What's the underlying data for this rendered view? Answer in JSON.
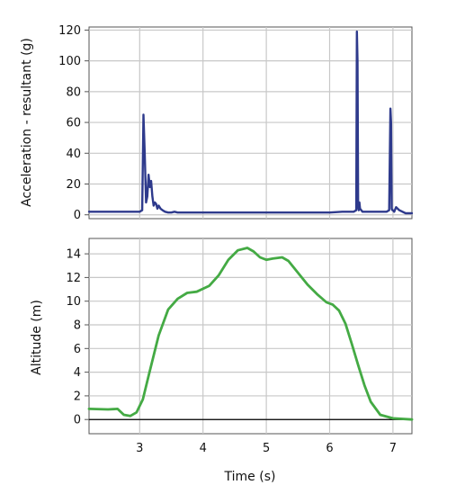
{
  "chart_data": [
    {
      "type": "line",
      "ylabel": "Acceleration - resultant (g)",
      "xlim": [
        2.2,
        7.3
      ],
      "ylim": [
        -2.5,
        122
      ],
      "x_ticks": [
        3,
        4,
        5,
        6,
        7
      ],
      "y_ticks": [
        0,
        20,
        40,
        60,
        80,
        100,
        120
      ],
      "grid": true,
      "series": [
        {
          "color": "#2e3a8c",
          "x": [
            2.2,
            2.4,
            2.6,
            2.8,
            3.0,
            3.04,
            3.06,
            3.08,
            3.1,
            3.12,
            3.14,
            3.16,
            3.18,
            3.2,
            3.22,
            3.24,
            3.26,
            3.28,
            3.3,
            3.33,
            3.36,
            3.4,
            3.45,
            3.5,
            3.55,
            3.6,
            3.7,
            3.8,
            4.0,
            4.5,
            5.0,
            5.5,
            6.0,
            6.2,
            6.38,
            6.42,
            6.43,
            6.44,
            6.45,
            6.46,
            6.47,
            6.48,
            6.5,
            6.52,
            6.55,
            6.7,
            6.9,
            6.94,
            6.96,
            6.97,
            6.98,
            6.99,
            7.0,
            7.02,
            7.05,
            7.1,
            7.2,
            7.3
          ],
          "y": [
            2,
            2,
            2,
            2,
            2,
            3,
            65,
            40,
            8,
            12,
            26,
            18,
            22,
            12,
            6,
            8,
            7,
            4,
            6,
            4,
            3,
            2,
            1.5,
            1.5,
            2,
            1.5,
            1.5,
            1.5,
            1.5,
            1.5,
            1.5,
            1.5,
            1.5,
            2,
            2,
            3,
            119,
            100,
            5,
            3,
            8,
            4,
            3,
            2,
            2,
            2,
            2,
            3,
            69,
            60,
            4,
            3,
            3,
            2,
            5,
            3,
            1,
            1
          ]
        }
      ]
    },
    {
      "type": "line",
      "xlabel": "Time (s)",
      "ylabel": "Altitude (m)",
      "xlim": [
        2.2,
        7.3
      ],
      "ylim": [
        -1.2,
        15.3
      ],
      "x_ticks": [
        3,
        4,
        5,
        6,
        7
      ],
      "y_ticks": [
        0,
        2,
        4,
        6,
        8,
        10,
        12,
        14
      ],
      "grid": true,
      "zero_line": true,
      "series": [
        {
          "color": "#44aa44",
          "x": [
            2.2,
            2.5,
            2.65,
            2.75,
            2.85,
            2.95,
            3.05,
            3.15,
            3.3,
            3.45,
            3.6,
            3.75,
            3.9,
            4.1,
            4.25,
            4.4,
            4.55,
            4.7,
            4.8,
            4.9,
            5.0,
            5.1,
            5.25,
            5.35,
            5.5,
            5.65,
            5.8,
            5.95,
            6.05,
            6.15,
            6.25,
            6.35,
            6.45,
            6.55,
            6.65,
            6.8,
            7.0,
            7.3
          ],
          "y": [
            0.9,
            0.85,
            0.9,
            0.4,
            0.3,
            0.6,
            1.7,
            3.9,
            7.1,
            9.3,
            10.2,
            10.7,
            10.8,
            11.3,
            12.2,
            13.5,
            14.3,
            14.5,
            14.2,
            13.7,
            13.5,
            13.6,
            13.7,
            13.4,
            12.4,
            11.4,
            10.6,
            9.9,
            9.7,
            9.2,
            8.1,
            6.4,
            4.6,
            2.9,
            1.5,
            0.4,
            0.1,
            0.0
          ]
        }
      ]
    }
  ]
}
